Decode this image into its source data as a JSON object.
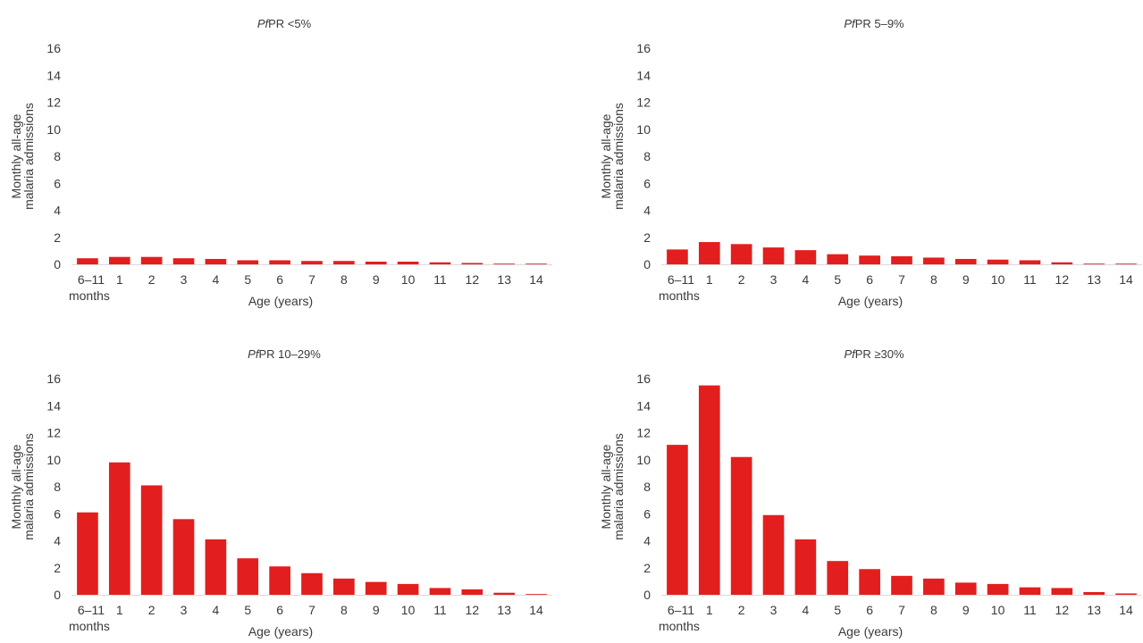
{
  "chart_data": [
    {
      "type": "bar",
      "title_italic": "Pf",
      "title_rest": "PR <5%",
      "xlabel": "Age (years)",
      "ylabel": [
        "Monthly all-age",
        "malaria admissions"
      ],
      "categories": [
        "6–11 months",
        "1",
        "2",
        "3",
        "4",
        "5",
        "6",
        "7",
        "8",
        "9",
        "10",
        "11",
        "12",
        "13",
        "14"
      ],
      "values": [
        0.45,
        0.55,
        0.55,
        0.45,
        0.4,
        0.3,
        0.3,
        0.25,
        0.25,
        0.2,
        0.2,
        0.15,
        0.1,
        0.05,
        0.02
      ],
      "ylim": [
        0,
        16
      ],
      "yticks": [
        0,
        2,
        4,
        6,
        8,
        10,
        12,
        14,
        16
      ],
      "color": "#e31e1e"
    },
    {
      "type": "bar",
      "title_italic": "Pf",
      "title_rest": "PR 5–9%",
      "xlabel": "Age (years)",
      "ylabel": [
        "Monthly all-age",
        "malaria admissions"
      ],
      "categories": [
        "6–11 months",
        "1",
        "2",
        "3",
        "4",
        "5",
        "6",
        "7",
        "8",
        "9",
        "10",
        "11",
        "12",
        "13",
        "14"
      ],
      "values": [
        1.1,
        1.65,
        1.5,
        1.25,
        1.05,
        0.75,
        0.65,
        0.6,
        0.5,
        0.4,
        0.35,
        0.3,
        0.15,
        0.05,
        0.0
      ],
      "ylim": [
        0,
        16
      ],
      "yticks": [
        0,
        2,
        4,
        6,
        8,
        10,
        12,
        14,
        16
      ],
      "color": "#e31e1e"
    },
    {
      "type": "bar",
      "title_italic": "Pf",
      "title_rest": "PR 10–29%",
      "xlabel": "Age (years)",
      "ylabel": [
        "Monthly all-age",
        "malaria admissions"
      ],
      "categories": [
        "6–11 months",
        "1",
        "2",
        "3",
        "4",
        "5",
        "6",
        "7",
        "8",
        "9",
        "10",
        "11",
        "12",
        "13",
        "14"
      ],
      "values": [
        6.1,
        9.8,
        8.1,
        5.6,
        4.1,
        2.7,
        2.1,
        1.6,
        1.2,
        0.95,
        0.8,
        0.5,
        0.4,
        0.15,
        0.05
      ],
      "ylim": [
        0,
        16
      ],
      "yticks": [
        0,
        2,
        4,
        6,
        8,
        10,
        12,
        14,
        16
      ],
      "color": "#e31e1e"
    },
    {
      "type": "bar",
      "title_italic": "Pf",
      "title_rest": "PR ≥30%",
      "xlabel": "Age (years)",
      "ylabel": [
        "Monthly all-age",
        "malaria admissions"
      ],
      "categories": [
        "6–11 months",
        "1",
        "2",
        "3",
        "4",
        "5",
        "6",
        "7",
        "8",
        "9",
        "10",
        "11",
        "12",
        "13",
        "14"
      ],
      "values": [
        11.1,
        15.5,
        10.2,
        5.9,
        4.1,
        2.5,
        1.9,
        1.4,
        1.2,
        0.9,
        0.8,
        0.55,
        0.5,
        0.2,
        0.1
      ],
      "ylim": [
        0,
        16
      ],
      "yticks": [
        0,
        2,
        4,
        6,
        8,
        10,
        12,
        14,
        16
      ],
      "color": "#e31e1e"
    }
  ]
}
